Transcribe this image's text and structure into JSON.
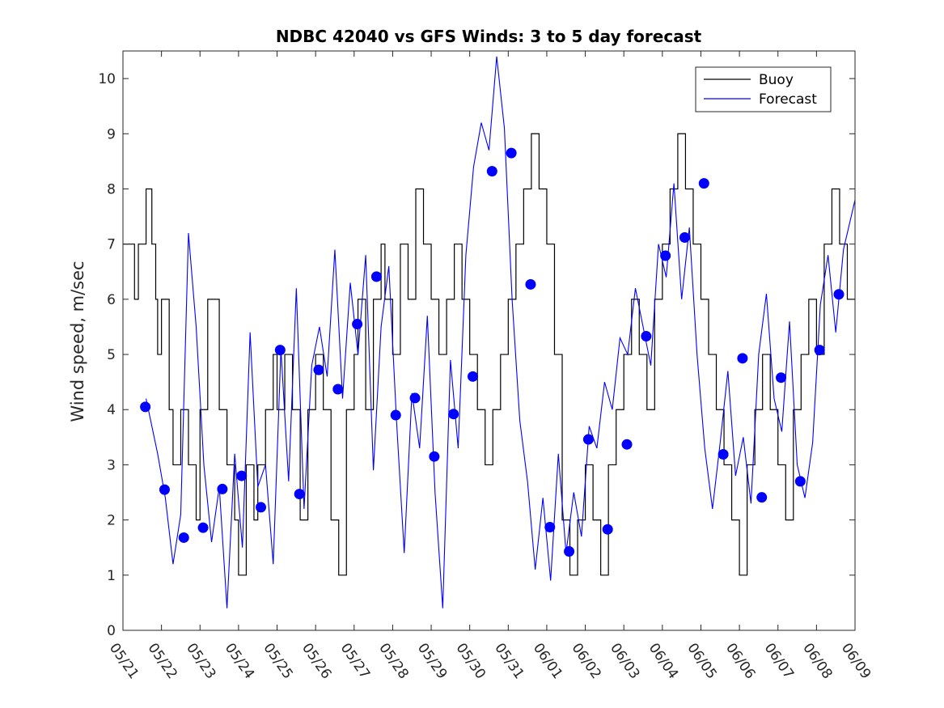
{
  "chart_data": {
    "type": "line",
    "title": "NDBC 42040 vs GFS Winds: 3 to 5 day forecast",
    "xlabel": "",
    "ylabel": "Wind speed, m/sec",
    "xlim": [
      0,
      19
    ],
    "ylim": [
      0,
      10.5
    ],
    "x_tick_labels": [
      "05/21",
      "05/22",
      "05/23",
      "05/24",
      "05/25",
      "05/26",
      "05/27",
      "05/28",
      "05/29",
      "05/30",
      "05/31",
      "06/01",
      "06/02",
      "06/03",
      "06/04",
      "06/05",
      "06/06",
      "06/07",
      "06/08",
      "06/09"
    ],
    "y_ticks": [
      0,
      1,
      2,
      3,
      4,
      5,
      6,
      7,
      8,
      9,
      10
    ],
    "legend": {
      "position": "top-right",
      "entries": [
        {
          "label": "Buoy",
          "color": "#000000"
        },
        {
          "label": "Forecast",
          "color": "#0000ff"
        }
      ]
    },
    "colors": {
      "buoy": "#000000",
      "forecast": "#0000ff",
      "dots": "#0000ff"
    },
    "series": [
      {
        "name": "Buoy",
        "x": [
          0.0,
          0.3,
          0.4,
          0.6,
          0.75,
          0.85,
          0.9,
          1.0,
          1.2,
          1.3,
          1.5,
          1.7,
          1.9,
          2.0,
          2.2,
          2.5,
          2.7,
          2.9,
          3.0,
          3.2,
          3.4,
          3.5,
          3.7,
          3.9,
          4.0,
          4.2,
          4.4,
          4.6,
          4.8,
          5.0,
          5.2,
          5.4,
          5.6,
          5.8,
          6.0,
          6.1,
          6.3,
          6.5,
          6.7,
          6.8,
          7.0,
          7.2,
          7.4,
          7.6,
          7.8,
          8.0,
          8.2,
          8.4,
          8.6,
          8.8,
          9.0,
          9.2,
          9.4,
          9.6,
          9.8,
          10.0,
          10.2,
          10.4,
          10.6,
          10.8,
          11.0,
          11.2,
          11.4,
          11.6,
          11.8,
          12.0,
          12.2,
          12.4,
          12.6,
          12.8,
          13.0,
          13.2,
          13.4,
          13.6,
          13.8,
          14.0,
          14.2,
          14.4,
          14.6,
          14.8,
          15.0,
          15.2,
          15.4,
          15.6,
          15.8,
          16.0,
          16.2,
          16.4,
          16.6,
          16.8,
          17.0,
          17.2,
          17.4,
          17.6,
          17.8,
          18.0,
          18.2,
          18.4,
          18.6,
          18.8,
          19.0
        ],
        "values": [
          7,
          6,
          7,
          8,
          7,
          6,
          5,
          6,
          4,
          3,
          4,
          3,
          2,
          4,
          6,
          4,
          3,
          2,
          1,
          3,
          2,
          3,
          4,
          5,
          4,
          5,
          4,
          2,
          4,
          5,
          4,
          2,
          1,
          4,
          5,
          6,
          4,
          6,
          7,
          6,
          5,
          7,
          6,
          8,
          7,
          6,
          5,
          6,
          7,
          6,
          5,
          4,
          3,
          4,
          5,
          6,
          7,
          8,
          9,
          8,
          7,
          5,
          2,
          1,
          2,
          3,
          2,
          1,
          3,
          4,
          5,
          6,
          5,
          4,
          6,
          7,
          8,
          9,
          8,
          7,
          6,
          5,
          4,
          3,
          2,
          1,
          3,
          4,
          5,
          4,
          3,
          2,
          4,
          5,
          6,
          5,
          7,
          8,
          7,
          6,
          6
        ]
      },
      {
        "name": "Forecast",
        "x": [
          0.6,
          0.9,
          1.1,
          1.3,
          1.5,
          1.7,
          1.9,
          2.1,
          2.3,
          2.5,
          2.7,
          2.9,
          3.1,
          3.3,
          3.5,
          3.7,
          3.9,
          4.1,
          4.3,
          4.5,
          4.7,
          4.9,
          5.1,
          5.3,
          5.5,
          5.7,
          5.9,
          6.1,
          6.3,
          6.5,
          6.7,
          6.9,
          7.1,
          7.3,
          7.5,
          7.7,
          7.9,
          8.1,
          8.3,
          8.5,
          8.7,
          8.9,
          9.1,
          9.3,
          9.5,
          9.7,
          9.9,
          10.1,
          10.3,
          10.5,
          10.7,
          10.9,
          11.1,
          11.3,
          11.5,
          11.7,
          11.9,
          12.1,
          12.3,
          12.5,
          12.7,
          12.9,
          13.1,
          13.3,
          13.5,
          13.7,
          13.9,
          14.1,
          14.3,
          14.5,
          14.7,
          14.9,
          15.1,
          15.3,
          15.5,
          15.7,
          15.9,
          16.1,
          16.3,
          16.5,
          16.7,
          16.9,
          17.1,
          17.3,
          17.5,
          17.7,
          17.9,
          18.1,
          18.3,
          18.5,
          18.7,
          19.0
        ],
        "values": [
          4.2,
          3.2,
          2.4,
          1.2,
          2.1,
          7.2,
          5.5,
          3.0,
          1.6,
          2.6,
          0.4,
          3.2,
          1.5,
          5.4,
          2.6,
          3.0,
          1.2,
          5.1,
          2.7,
          6.2,
          2.2,
          4.8,
          5.5,
          4.6,
          6.9,
          4.2,
          6.3,
          5.0,
          6.8,
          2.9,
          5.5,
          6.6,
          3.8,
          1.4,
          4.3,
          3.3,
          5.7,
          2.5,
          0.4,
          4.9,
          3.3,
          6.8,
          8.4,
          9.2,
          8.7,
          10.4,
          9.1,
          6.0,
          3.8,
          2.7,
          1.1,
          2.4,
          0.9,
          3.2,
          1.4,
          2.5,
          1.7,
          3.7,
          3.3,
          4.5,
          4.0,
          5.3,
          5.0,
          6.2,
          5.5,
          4.8,
          7.0,
          6.4,
          8.1,
          6.0,
          7.3,
          5.0,
          3.3,
          2.2,
          3.4,
          4.7,
          2.8,
          3.5,
          2.3,
          5.0,
          6.1,
          4.2,
          3.6,
          5.6,
          3.0,
          2.4,
          3.4,
          5.9,
          6.8,
          5.4,
          6.9,
          7.8
        ]
      },
      {
        "name": "",
        "type": "scatter",
        "x": [
          0.58,
          1.08,
          1.58,
          2.08,
          2.58,
          3.08,
          3.58,
          4.08,
          4.58,
          5.08,
          5.58,
          6.08,
          6.58,
          7.08,
          7.58,
          8.08,
          8.58,
          9.08,
          9.58,
          10.08,
          10.58,
          11.08,
          11.58,
          12.08,
          12.58,
          13.08,
          13.58,
          14.08,
          14.58,
          15.08,
          15.58,
          16.08,
          16.58,
          17.08,
          17.58,
          18.08,
          18.58
        ],
        "values": [
          4.05,
          2.55,
          1.68,
          1.86,
          2.56,
          2.8,
          2.23,
          5.08,
          2.47,
          4.72,
          4.37,
          5.55,
          6.41,
          3.9,
          4.21,
          3.15,
          3.92,
          4.6,
          8.32,
          8.65,
          6.27,
          1.87,
          1.43,
          3.46,
          1.83,
          3.37,
          5.33,
          6.79,
          7.12,
          8.1,
          3.19,
          4.93,
          2.41,
          4.58,
          2.7,
          5.08,
          6.09
        ]
      }
    ]
  }
}
